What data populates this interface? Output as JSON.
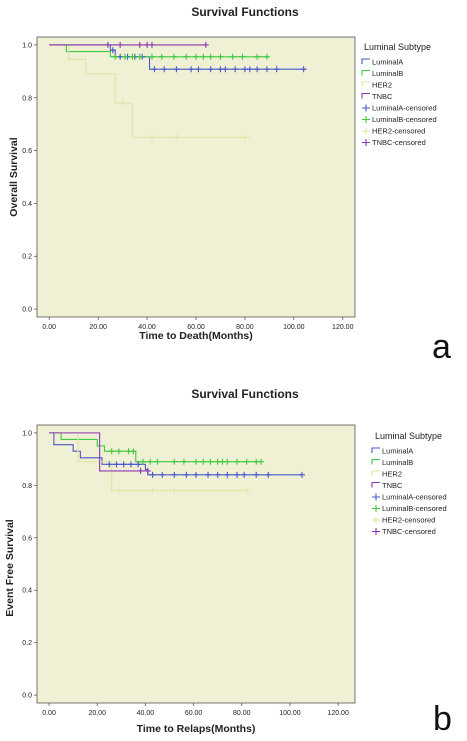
{
  "chart_data": [
    {
      "type": "line",
      "title": "Survival Functions",
      "xlabel": "Time to Death(Months)",
      "ylabel": "Overall Survival",
      "panel_label": "a",
      "xticks": [
        "0.00",
        "20.00",
        "40.00",
        "60.00",
        "80.00",
        "100.00",
        "120.00"
      ],
      "yticks": [
        "0.0",
        "0.2",
        "0.4",
        "0.6",
        "0.8",
        "1.0"
      ],
      "xlim": [
        -5,
        125
      ],
      "ylim": [
        -0.03,
        1.03
      ],
      "grid": false,
      "legend_position": "right",
      "legend_title": "Luminal Subtype",
      "legend_entries": [
        {
          "label": "LuminalA",
          "color": "#4a57c8",
          "kind": "step"
        },
        {
          "label": "LuminalB",
          "color": "#3ec93e",
          "kind": "step"
        },
        {
          "label": "HER2",
          "color": "#e3e3a4",
          "kind": "step"
        },
        {
          "label": "TNBC",
          "color": "#8b36b4",
          "kind": "step"
        },
        {
          "label": "LuminalA-censored",
          "color": "#4a57c8",
          "kind": "censor"
        },
        {
          "label": "LuminalB-censored",
          "color": "#3ec93e",
          "kind": "censor"
        },
        {
          "label": "HER2-censored",
          "color": "#e3e3a4",
          "kind": "censor"
        },
        {
          "label": "TNBC-censored",
          "color": "#8b36b4",
          "kind": "censor"
        }
      ],
      "series": [
        {
          "name": "LuminalA",
          "color": "#4a57c8",
          "steps": [
            [
              0,
              1.0
            ],
            [
              25,
              0.98
            ],
            [
              27,
              0.955
            ],
            [
              41,
              0.908
            ],
            [
              105,
              0.908
            ]
          ],
          "censored": [
            [
              26,
              0.98
            ],
            [
              29,
              0.955
            ],
            [
              32,
              0.955
            ],
            [
              35,
              0.955
            ],
            [
              38,
              0.955
            ],
            [
              43,
              0.908
            ],
            [
              47,
              0.908
            ],
            [
              52,
              0.908
            ],
            [
              58,
              0.908
            ],
            [
              61,
              0.908
            ],
            [
              66,
              0.908
            ],
            [
              70,
              0.908
            ],
            [
              72,
              0.908
            ],
            [
              76,
              0.908
            ],
            [
              80,
              0.908
            ],
            [
              82,
              0.908
            ],
            [
              85,
              0.908
            ],
            [
              89,
              0.908
            ],
            [
              93,
              0.908
            ],
            [
              104,
              0.908
            ]
          ]
        },
        {
          "name": "LuminalB",
          "color": "#3ec93e",
          "steps": [
            [
              0,
              1.0
            ],
            [
              7,
              0.975
            ],
            [
              25,
              0.955
            ],
            [
              90,
              0.955
            ]
          ],
          "censored": [
            [
              27,
              0.955
            ],
            [
              31,
              0.955
            ],
            [
              34,
              0.955
            ],
            [
              37,
              0.955
            ],
            [
              42,
              0.955
            ],
            [
              46,
              0.955
            ],
            [
              51,
              0.955
            ],
            [
              56,
              0.955
            ],
            [
              60,
              0.955
            ],
            [
              63,
              0.955
            ],
            [
              66,
              0.955
            ],
            [
              70,
              0.955
            ],
            [
              75,
              0.955
            ],
            [
              79,
              0.955
            ],
            [
              85,
              0.955
            ],
            [
              89,
              0.955
            ]
          ]
        },
        {
          "name": "HER2",
          "color": "#e3e3a4",
          "steps": [
            [
              0,
              1.0
            ],
            [
              8,
              0.945
            ],
            [
              15,
              0.89
            ],
            [
              27,
              0.78
            ],
            [
              34,
              0.65
            ],
            [
              82,
              0.65
            ]
          ],
          "censored": [
            [
              30,
              0.78
            ],
            [
              42,
              0.65
            ],
            [
              52,
              0.65
            ],
            [
              80,
              0.65
            ]
          ]
        },
        {
          "name": "TNBC",
          "color": "#8b36b4",
          "steps": [
            [
              0,
              1.0
            ],
            [
              64,
              1.0
            ]
          ],
          "censored": [
            [
              24,
              1.0
            ],
            [
              29,
              1.0
            ],
            [
              37,
              1.0
            ],
            [
              40,
              1.0
            ],
            [
              42,
              1.0
            ],
            [
              64,
              1.0
            ]
          ]
        }
      ]
    },
    {
      "type": "line",
      "title": "Survival Functions",
      "xlabel": "Time to Relaps(Months)",
      "ylabel": "Event Free Survival",
      "panel_label": "b",
      "xticks": [
        "0.00",
        "20.00",
        "40.00",
        "60.00",
        "80.00",
        "100.00",
        "120.00"
      ],
      "yticks": [
        "0.0",
        "0.2",
        "0.4",
        "0.6",
        "0.8",
        "1.0"
      ],
      "xlim": [
        -5,
        127
      ],
      "ylim": [
        -0.03,
        1.03
      ],
      "grid": false,
      "legend_position": "right",
      "legend_title": "Luminal Subtype",
      "legend_entries": [
        {
          "label": "LuminalA",
          "color": "#4a57c8",
          "kind": "step"
        },
        {
          "label": "LuminalB",
          "color": "#3ec93e",
          "kind": "step"
        },
        {
          "label": "HER2",
          "color": "#e3e3a4",
          "kind": "step"
        },
        {
          "label": "TNBC",
          "color": "#8b36b4",
          "kind": "step"
        },
        {
          "label": "LuminalA-censored",
          "color": "#4a57c8",
          "kind": "censor"
        },
        {
          "label": "LuminalB-censored",
          "color": "#3ec93e",
          "kind": "censor"
        },
        {
          "label": "HER2-censored",
          "color": "#e3e3a4",
          "kind": "censor"
        },
        {
          "label": "TNBC-censored",
          "color": "#8b36b4",
          "kind": "censor"
        }
      ],
      "series": [
        {
          "name": "LuminalA",
          "color": "#4a57c8",
          "steps": [
            [
              0,
              1.0
            ],
            [
              2,
              0.955
            ],
            [
              10,
              0.93
            ],
            [
              13,
              0.905
            ],
            [
              22,
              0.88
            ],
            [
              40,
              0.86
            ],
            [
              41,
              0.84
            ],
            [
              105,
              0.84
            ]
          ],
          "censored": [
            [
              25,
              0.88
            ],
            [
              28,
              0.88
            ],
            [
              31,
              0.88
            ],
            [
              34,
              0.88
            ],
            [
              37,
              0.88
            ],
            [
              43,
              0.84
            ],
            [
              47,
              0.84
            ],
            [
              52,
              0.84
            ],
            [
              57,
              0.84
            ],
            [
              61,
              0.84
            ],
            [
              66,
              0.84
            ],
            [
              70,
              0.84
            ],
            [
              74,
              0.84
            ],
            [
              78,
              0.84
            ],
            [
              81,
              0.84
            ],
            [
              86,
              0.84
            ],
            [
              91,
              0.84
            ],
            [
              105,
              0.84
            ]
          ]
        },
        {
          "name": "LuminalB",
          "color": "#3ec93e",
          "steps": [
            [
              0,
              1.0
            ],
            [
              5,
              0.975
            ],
            [
              20,
              0.95
            ],
            [
              23,
              0.93
            ],
            [
              36,
              0.89
            ],
            [
              88,
              0.89
            ]
          ],
          "censored": [
            [
              26,
              0.93
            ],
            [
              29,
              0.93
            ],
            [
              33,
              0.93
            ],
            [
              35,
              0.93
            ],
            [
              39,
              0.89
            ],
            [
              42,
              0.89
            ],
            [
              45,
              0.89
            ],
            [
              52,
              0.89
            ],
            [
              56,
              0.89
            ],
            [
              61,
              0.89
            ],
            [
              64,
              0.89
            ],
            [
              67,
              0.89
            ],
            [
              70,
              0.89
            ],
            [
              72,
              0.89
            ],
            [
              74,
              0.89
            ],
            [
              78,
              0.89
            ],
            [
              82,
              0.89
            ],
            [
              86,
              0.89
            ],
            [
              88,
              0.89
            ]
          ]
        },
        {
          "name": "HER2",
          "color": "#e3e3a4",
          "steps": [
            [
              0,
              1.0
            ],
            [
              12,
              0.89
            ],
            [
              26,
              0.78
            ],
            [
              82,
              0.78
            ]
          ],
          "censored": [
            [
              29,
              0.78
            ],
            [
              43,
              0.78
            ],
            [
              52,
              0.78
            ],
            [
              82,
              0.78
            ]
          ]
        },
        {
          "name": "TNBC",
          "color": "#8b36b4",
          "steps": [
            [
              0,
              1.0
            ],
            [
              21,
              0.855
            ],
            [
              42,
              0.855
            ]
          ],
          "censored": [
            [
              38,
              0.855
            ],
            [
              41,
              0.855
            ]
          ]
        }
      ]
    }
  ]
}
